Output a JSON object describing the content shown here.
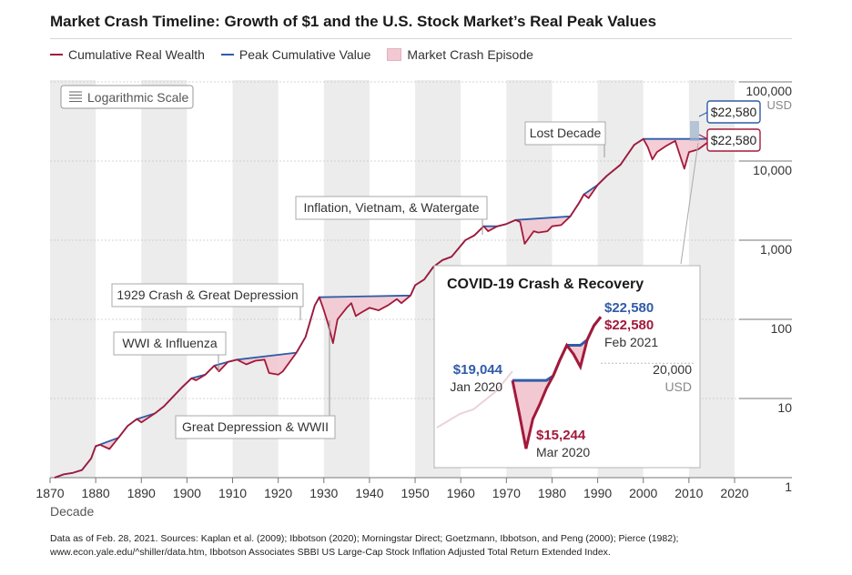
{
  "title": "Market Crash Timeline: Growth of $1 and the U.S. Stock Market’s Real Peak Values",
  "legend": {
    "items": [
      {
        "label": "Cumulative Real Wealth",
        "color": "#a3193a",
        "kind": "line"
      },
      {
        "label": "Peak Cumulative Value",
        "color": "#2f5ca8",
        "kind": "line"
      },
      {
        "label": "Market Crash Episode",
        "color": "#f2c9d2",
        "kind": "box"
      }
    ]
  },
  "scale_badge": "Logarithmic Scale",
  "colors": {
    "wealth": "#a3193a",
    "peak": "#2f5ca8",
    "crash_fill": "#f2c9d2",
    "band": "#ececec",
    "grid": "#b5b5b5"
  },
  "chart_data": {
    "type": "line",
    "title": "Market Crash Timeline: Growth of $1 and the U.S. Stock Market’s Real Peak Values",
    "xlabel": "Decade",
    "ylabel": "USD",
    "y_scale": "log",
    "xlim": [
      1870,
      2021
    ],
    "ylim": [
      1,
      100000
    ],
    "x_ticks": [
      1870,
      1880,
      1890,
      1900,
      1910,
      1920,
      1930,
      1940,
      1950,
      1960,
      1970,
      1980,
      1990,
      2000,
      2010,
      2020
    ],
    "y_ticks": [
      {
        "value": 1,
        "label": "1"
      },
      {
        "value": 10,
        "label": "10"
      },
      {
        "value": 100,
        "label": "100"
      },
      {
        "value": 1000,
        "label": "1,000"
      },
      {
        "value": 10000,
        "label": "10,000"
      },
      {
        "value": 100000,
        "label": "100,000"
      }
    ],
    "y_unit": "USD",
    "series": [
      {
        "name": "Cumulative Real Wealth",
        "color": "#a3193a",
        "x": [
          1871,
          1873,
          1875,
          1877,
          1879,
          1880,
          1881,
          1883,
          1885,
          1887,
          1889,
          1890,
          1893,
          1895,
          1899,
          1901,
          1902,
          1904,
          1906,
          1907,
          1909,
          1911,
          1913,
          1915,
          1917,
          1918,
          1920,
          1921,
          1924,
          1926,
          1927,
          1928,
          1929,
          1930,
          1931,
          1932,
          1933,
          1935,
          1936,
          1937,
          1938,
          1940,
          1942,
          1944,
          1946,
          1947,
          1949,
          1950,
          1952,
          1954,
          1956,
          1958,
          1960,
          1961,
          1963,
          1965,
          1966,
          1968,
          1970,
          1972,
          1973,
          1974,
          1976,
          1977,
          1979,
          1980,
          1982,
          1984,
          1986,
          1987,
          1988,
          1990,
          1992,
          1995,
          1998,
          2000,
          2001,
          2002,
          2003,
          2005,
          2007,
          2008,
          2009,
          2010,
          2012,
          2014,
          2016,
          2018,
          2019,
          2020,
          2021
        ],
        "values": [
          1,
          1.1,
          1.15,
          1.25,
          1.75,
          2.5,
          2.6,
          2.3,
          3.2,
          4.5,
          5.5,
          5.0,
          6.5,
          8,
          14,
          18,
          17,
          20,
          26,
          22,
          29,
          31,
          27,
          30,
          31,
          21,
          20,
          22,
          38,
          60,
          95,
          150,
          190,
          130,
          85,
          50,
          100,
          140,
          160,
          110,
          120,
          140,
          130,
          150,
          180,
          160,
          200,
          270,
          320,
          460,
          560,
          620,
          850,
          1000,
          1150,
          1500,
          1300,
          1500,
          1600,
          1800,
          1700,
          900,
          1300,
          1250,
          1300,
          1500,
          1550,
          2000,
          3000,
          3800,
          3400,
          5000,
          6500,
          9000,
          16000,
          19000,
          15000,
          10500,
          13000,
          15500,
          18000,
          12000,
          8000,
          13000,
          14000,
          17000,
          19000,
          21000,
          22000,
          15244,
          22580
        ]
      },
      {
        "name": "Peak Cumulative Value",
        "color": "#2f5ca8",
        "x": [
          1871,
          1873,
          1875,
          1877,
          1879,
          1880,
          1885,
          1887,
          1889,
          1893,
          1895,
          1899,
          1901,
          1904,
          1906,
          1909,
          1911,
          1924,
          1926,
          1927,
          1928,
          1929,
          1949,
          1950,
          1952,
          1954,
          1956,
          1958,
          1960,
          1961,
          1963,
          1965,
          1968,
          1970,
          1972,
          1984,
          1986,
          1987,
          1990,
          1992,
          1995,
          1998,
          2000,
          2007,
          2010,
          2012,
          2014,
          2016,
          2018,
          2019,
          2021
        ],
        "values": [
          1,
          1.1,
          1.15,
          1.25,
          1.75,
          2.5,
          3.2,
          4.5,
          5.5,
          6.5,
          8,
          14,
          18,
          20,
          26,
          29,
          31,
          38,
          60,
          95,
          150,
          190,
          200,
          270,
          320,
          460,
          560,
          620,
          850,
          1000,
          1150,
          1500,
          1500,
          1600,
          1800,
          2000,
          3000,
          3800,
          5000,
          6500,
          9000,
          16000,
          19000,
          19000,
          19000,
          19000,
          19000,
          21000,
          22000,
          22000,
          22580
        ]
      }
    ],
    "crash_episodes": [
      {
        "label": "WWI & Influenza",
        "start": 1906,
        "end": 1924
      },
      {
        "label": "1929 Crash & Great Depression",
        "start": 1929,
        "end": 1949
      },
      {
        "label": "Great Depression & WWII",
        "start": 1937,
        "end": 1946
      },
      {
        "label": "Inflation, Vietnam, & Watergate",
        "start": 1968,
        "end": 1984
      },
      {
        "label": "Lost Decade",
        "start": 2000,
        "end": 2013
      }
    ],
    "end_labels": {
      "peak": "$22,580",
      "wealth": "$22,580"
    },
    "inset": {
      "title": "COVID-19 Crash & Recovery",
      "y_tick": "20,000",
      "y_unit": "USD",
      "x": [
        0,
        1,
        2,
        3,
        4,
        5,
        6,
        7,
        8,
        9,
        10,
        11,
        12,
        13
      ],
      "wealth": [
        19044,
        17200,
        15244,
        16900,
        17700,
        18600,
        19300,
        20200,
        21000,
        20500,
        19800,
        21300,
        22100,
        22580
      ],
      "peak": [
        19044,
        19044,
        19044,
        19044,
        19044,
        19044,
        19300,
        20200,
        21000,
        21000,
        21000,
        21300,
        22100,
        22580
      ],
      "annotations": [
        {
          "value": "$19,044",
          "date": "Jan 2020"
        },
        {
          "value": "$15,244",
          "date": "Mar 2020"
        },
        {
          "value": "$22,580",
          "date": ""
        },
        {
          "value": "$22,580",
          "date": "Feb 2021"
        }
      ]
    }
  },
  "footer": {
    "line1": "Data as of Feb. 28, 2021. Sources: Kaplan et al. (2009); Ibbotson (2020); Morningstar Direct; Goetzmann, Ibbotson, and Peng (2000); Pierce (1982);",
    "line2": "www.econ.yale.edu/^shiller/data.htm, Ibbotson Associates SBBI US Large-Cap Stock Inflation Adjusted Total Return Extended Index."
  }
}
